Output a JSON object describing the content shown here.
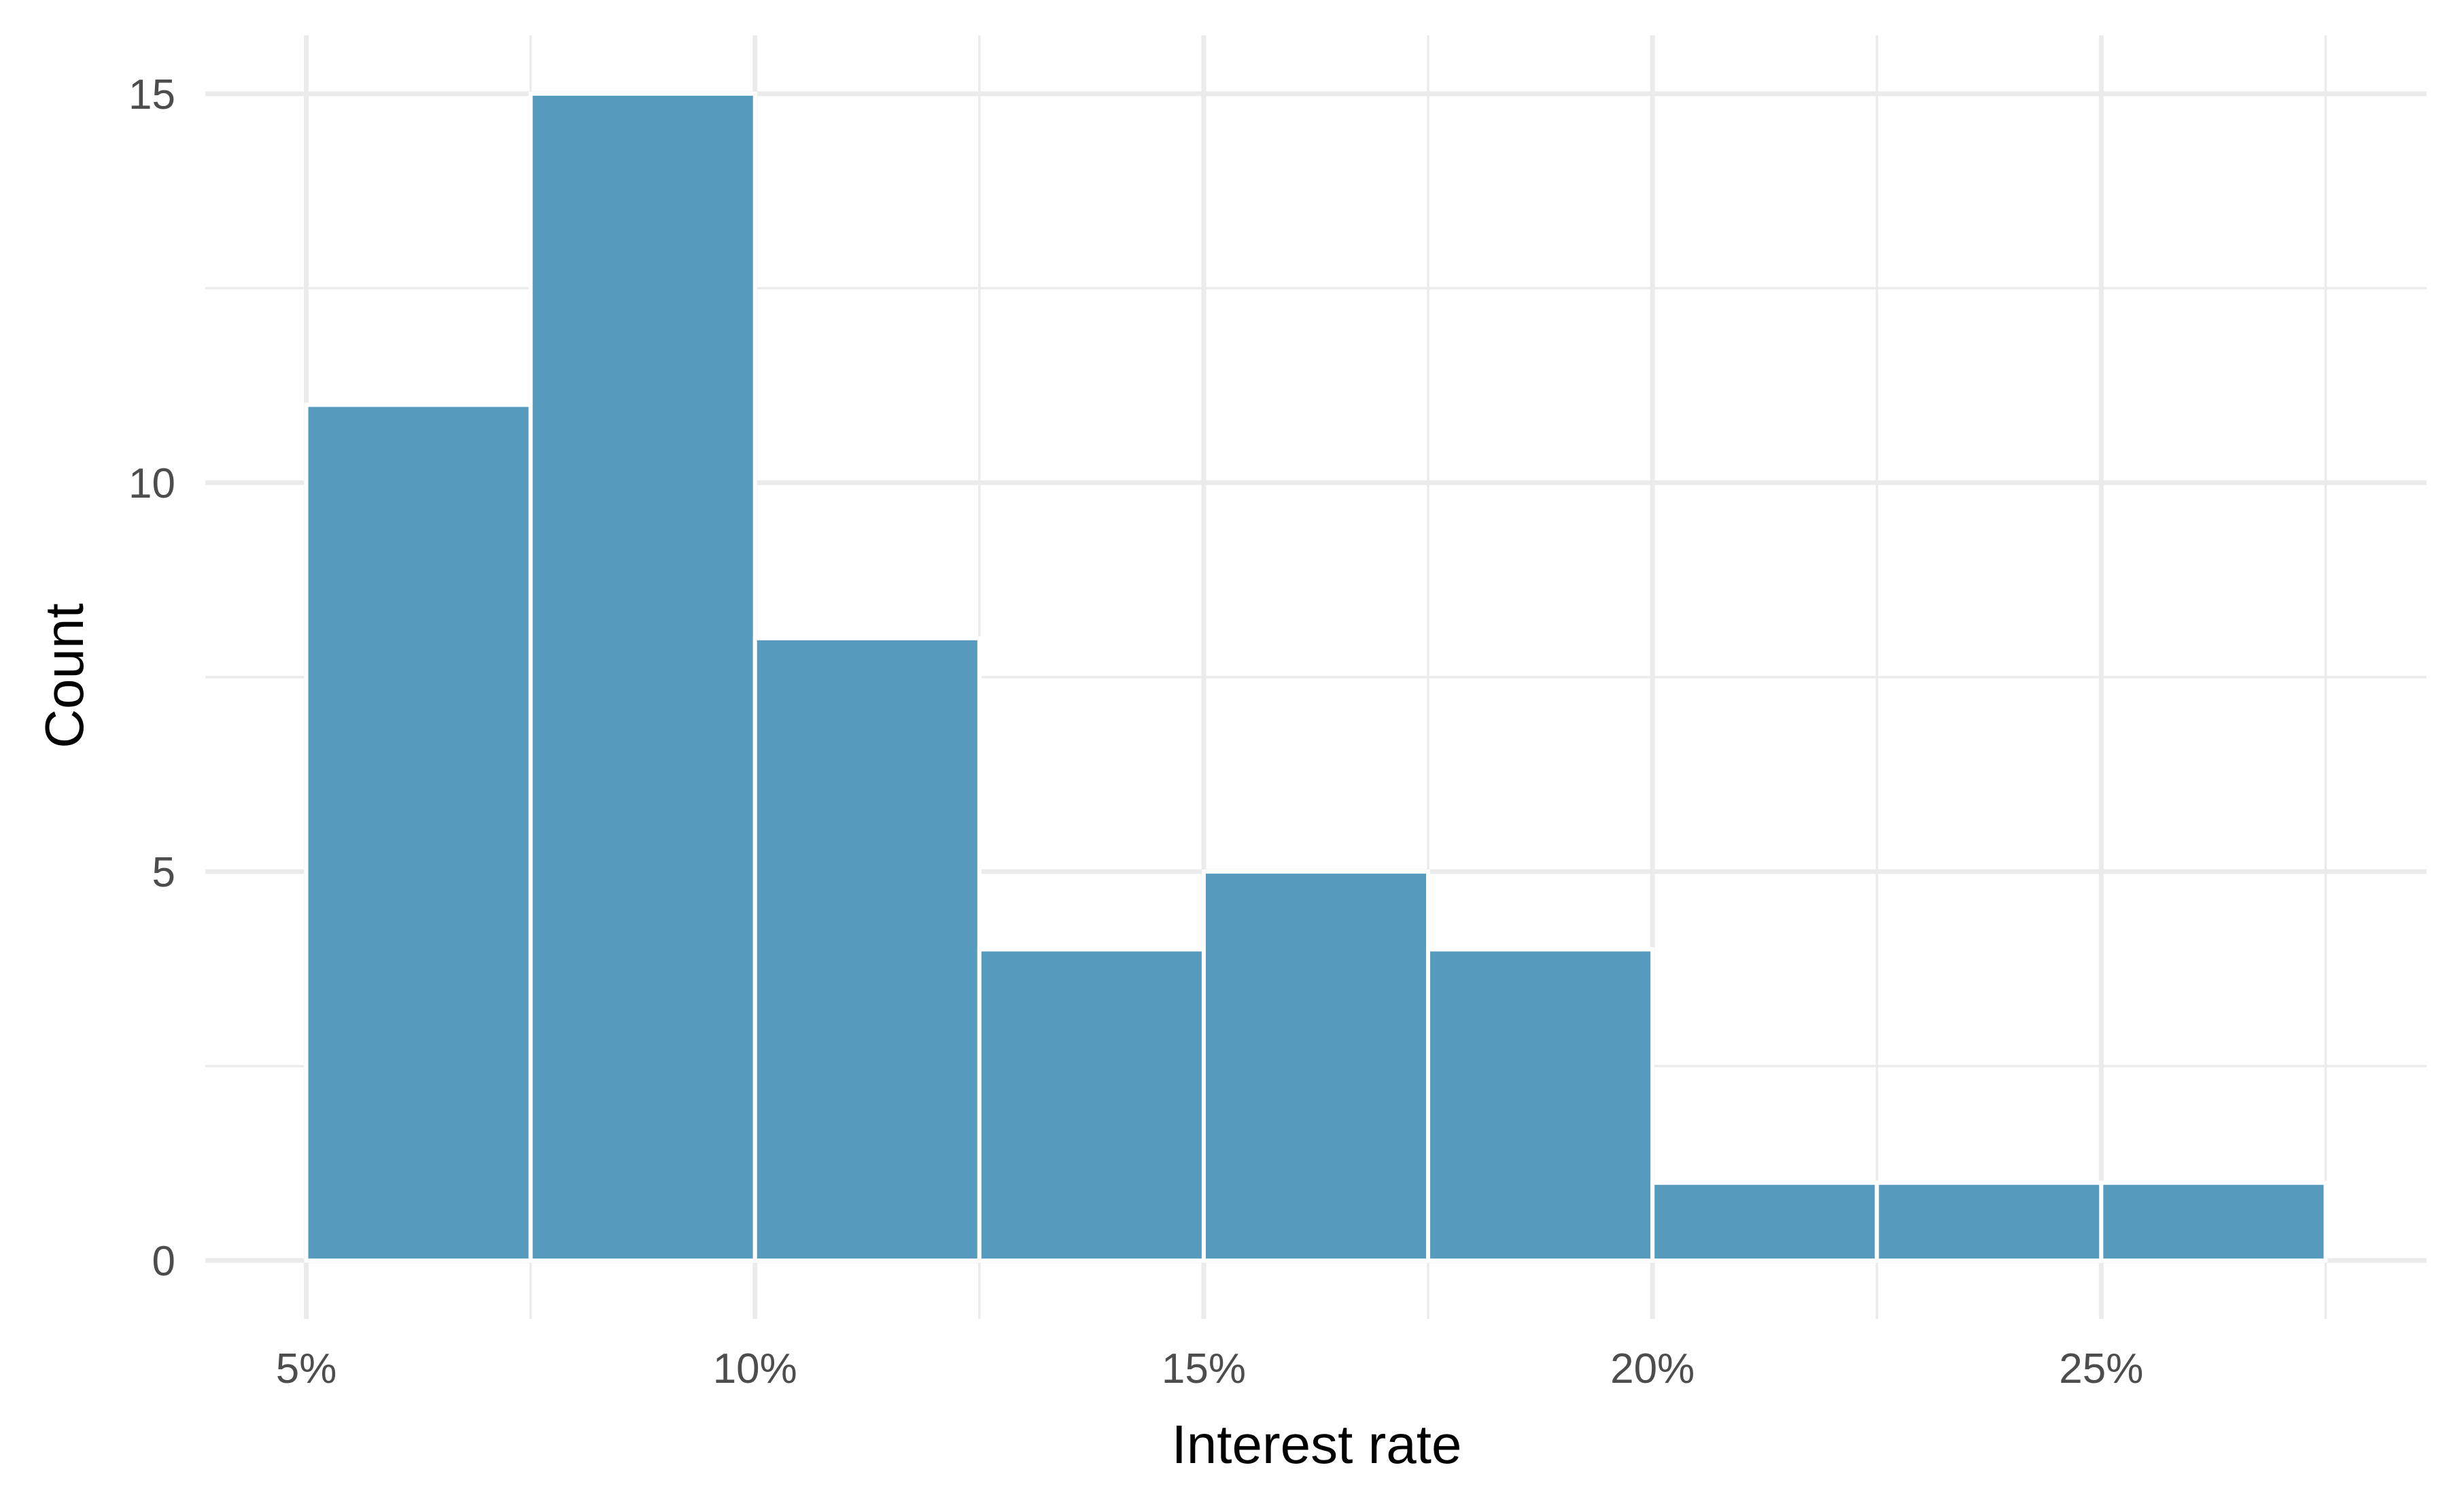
{
  "chart_data": {
    "type": "bar",
    "subtype": "histogram",
    "xlabel": "Interest rate",
    "ylabel": "Count",
    "bin_width": 2.5,
    "bins": [
      {
        "start": 5.0,
        "end": 7.5,
        "count": 11
      },
      {
        "start": 7.5,
        "end": 10.0,
        "count": 15
      },
      {
        "start": 10.0,
        "end": 12.5,
        "count": 8
      },
      {
        "start": 12.5,
        "end": 15.0,
        "count": 4
      },
      {
        "start": 15.0,
        "end": 17.5,
        "count": 5
      },
      {
        "start": 17.5,
        "end": 20.0,
        "count": 4
      },
      {
        "start": 20.0,
        "end": 22.5,
        "count": 1
      },
      {
        "start": 22.5,
        "end": 25.0,
        "count": 1
      },
      {
        "start": 25.0,
        "end": 27.5,
        "count": 1
      }
    ],
    "xlim": [
      3.875,
      28.625
    ],
    "ylim": [
      -0.75,
      15.75
    ],
    "x_ticks": [
      5,
      10,
      15,
      20,
      25
    ],
    "x_tick_labels": [
      "5%",
      "10%",
      "15%",
      "20%",
      "25%"
    ],
    "x_minor_grid": [
      7.5,
      12.5,
      17.5,
      22.5,
      27.5
    ],
    "y_ticks": [
      0,
      5,
      10,
      15
    ],
    "y_tick_labels": [
      "0",
      "5",
      "10",
      "15"
    ],
    "y_minor_grid": [
      2.5,
      7.5,
      12.5
    ],
    "bar_color": "#569bbd",
    "grid": true,
    "legend": "none"
  }
}
